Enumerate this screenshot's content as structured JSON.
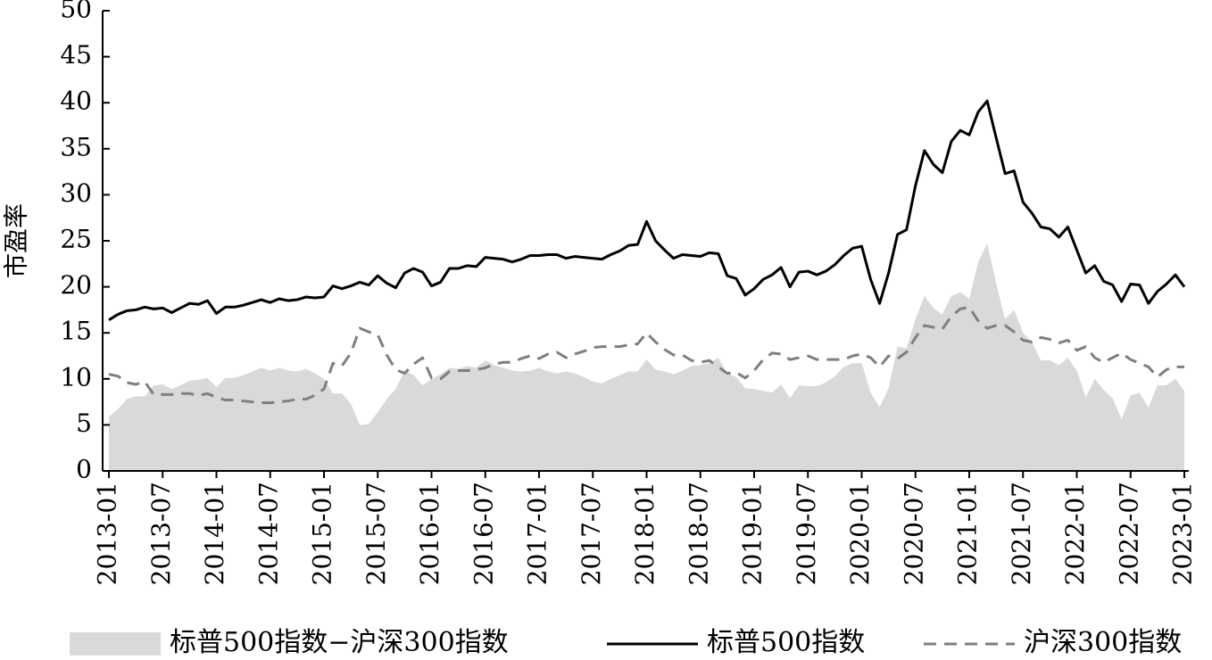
{
  "chart_data": {
    "type": "line",
    "ylabel": "市盈率",
    "x": [
      "2013-01",
      "2013-02",
      "2013-03",
      "2013-04",
      "2013-05",
      "2013-06",
      "2013-07",
      "2013-08",
      "2013-09",
      "2013-10",
      "2013-11",
      "2013-12",
      "2014-01",
      "2014-02",
      "2014-03",
      "2014-04",
      "2014-05",
      "2014-06",
      "2014-07",
      "2014-08",
      "2014-09",
      "2014-10",
      "2014-11",
      "2014-12",
      "2015-01",
      "2015-02",
      "2015-03",
      "2015-04",
      "2015-05",
      "2015-06",
      "2015-07",
      "2015-08",
      "2015-09",
      "2015-10",
      "2015-11",
      "2015-12",
      "2016-01",
      "2016-02",
      "2016-03",
      "2016-04",
      "2016-05",
      "2016-06",
      "2016-07",
      "2016-08",
      "2016-09",
      "2016-10",
      "2016-11",
      "2016-12",
      "2017-01",
      "2017-02",
      "2017-03",
      "2017-04",
      "2017-05",
      "2017-06",
      "2017-07",
      "2017-08",
      "2017-09",
      "2017-10",
      "2017-11",
      "2017-12",
      "2018-01",
      "2018-02",
      "2018-03",
      "2018-04",
      "2018-05",
      "2018-06",
      "2018-07",
      "2018-08",
      "2018-09",
      "2018-10",
      "2018-11",
      "2018-12",
      "2019-01",
      "2019-02",
      "2019-03",
      "2019-04",
      "2019-05",
      "2019-06",
      "2019-07",
      "2019-08",
      "2019-09",
      "2019-10",
      "2019-11",
      "2019-12",
      "2020-01",
      "2020-02",
      "2020-03",
      "2020-04",
      "2020-05",
      "2020-06",
      "2020-07",
      "2020-08",
      "2020-09",
      "2020-10",
      "2020-11",
      "2020-12",
      "2021-01",
      "2021-02",
      "2021-03",
      "2021-04",
      "2021-05",
      "2021-06",
      "2021-07",
      "2021-08",
      "2021-09",
      "2021-10",
      "2021-11",
      "2021-12",
      "2022-01",
      "2022-02",
      "2022-03",
      "2022-04",
      "2022-05",
      "2022-06",
      "2022-07",
      "2022-08",
      "2022-09",
      "2022-10",
      "2022-11",
      "2022-12",
      "2023-01"
    ],
    "xticks": [
      "2013-01",
      "2013-07",
      "2014-01",
      "2014-07",
      "2015-01",
      "2015-07",
      "2016-01",
      "2016-07",
      "2017-01",
      "2017-07",
      "2018-01",
      "2018-07",
      "2019-01",
      "2019-07",
      "2020-01",
      "2020-07",
      "2021-01",
      "2021-07",
      "2022-01",
      "2022-07",
      "2023-01"
    ],
    "ylim": [
      0,
      50
    ],
    "yticks": [
      0,
      5,
      10,
      15,
      20,
      25,
      30,
      35,
      40,
      45,
      50
    ],
    "series": [
      {
        "name": "标普500指数−沪深300指数",
        "style": "area",
        "color": "#d9d9d9",
        "values": [
          5.9,
          6.7,
          7.8,
          8.1,
          8.1,
          9.3,
          9.4,
          8.9,
          9.3,
          9.8,
          9.9,
          10.1,
          9.1,
          10.1,
          10.1,
          10.4,
          10.8,
          11.2,
          10.9,
          11.2,
          10.9,
          10.8,
          11.1,
          10.6,
          10.0,
          8.4,
          8.4,
          7.3,
          5.0,
          5.1,
          6.4,
          7.8,
          8.9,
          10.9,
          10.4,
          9.3,
          10.0,
          10.5,
          11.2,
          11.1,
          11.4,
          11.2,
          12.0,
          11.5,
          11.2,
          10.9,
          10.8,
          10.9,
          11.2,
          10.8,
          10.6,
          10.8,
          10.6,
          10.2,
          9.7,
          9.5,
          10.0,
          10.4,
          10.8,
          10.8,
          12.1,
          11.0,
          10.8,
          10.5,
          10.9,
          11.4,
          11.5,
          11.7,
          12.3,
          10.6,
          10.2,
          9.0,
          8.9,
          8.7,
          8.5,
          9.4,
          7.9,
          9.3,
          9.2,
          9.2,
          9.6,
          10.3,
          11.3,
          11.7,
          11.7,
          8.5,
          6.9,
          9.0,
          13.5,
          13.3,
          16.5,
          19.0,
          17.7,
          17.0,
          19.0,
          19.4,
          18.7,
          22.7,
          24.7,
          20.4,
          16.5,
          17.5,
          15.0,
          14.0,
          12.0,
          12.0,
          11.5,
          12.3,
          10.9,
          8.0,
          10.0,
          8.8,
          7.9,
          5.6,
          8.2,
          8.5,
          6.9,
          9.3,
          9.3,
          10.0,
          8.7
        ]
      },
      {
        "name": "标普500指数",
        "style": "solid",
        "color": "#000000",
        "values": [
          16.4,
          17.0,
          17.4,
          17.5,
          17.8,
          17.6,
          17.7,
          17.2,
          17.7,
          18.2,
          18.1,
          18.5,
          17.1,
          17.8,
          17.8,
          18.0,
          18.3,
          18.6,
          18.3,
          18.7,
          18.5,
          18.6,
          18.9,
          18.8,
          18.9,
          20.1,
          19.8,
          20.1,
          20.5,
          20.2,
          21.2,
          20.4,
          19.9,
          21.5,
          22.0,
          21.6,
          20.1,
          20.5,
          22.0,
          22.0,
          22.3,
          22.2,
          23.2,
          23.1,
          23.0,
          22.7,
          23.0,
          23.4,
          23.4,
          23.5,
          23.5,
          23.1,
          23.3,
          23.2,
          23.1,
          23.0,
          23.5,
          23.9,
          24.5,
          24.6,
          27.1,
          25.0,
          24.0,
          23.1,
          23.5,
          23.4,
          23.3,
          23.7,
          23.6,
          21.2,
          20.9,
          19.1,
          19.8,
          20.8,
          21.3,
          22.1,
          20.0,
          21.6,
          21.7,
          21.3,
          21.7,
          22.4,
          23.4,
          24.2,
          24.4,
          20.8,
          18.2,
          21.5,
          25.7,
          26.2,
          31.0,
          34.8,
          33.3,
          32.4,
          35.8,
          37.0,
          36.5,
          39.0,
          40.2,
          36.2,
          32.3,
          32.6,
          29.2,
          28.0,
          26.5,
          26.3,
          25.4,
          26.5,
          24.0,
          21.5,
          22.3,
          20.6,
          20.2,
          18.4,
          20.3,
          20.2,
          18.2,
          19.5,
          20.3,
          21.3,
          20.0
        ]
      },
      {
        "name": "沪深300指数",
        "style": "dashed",
        "color": "#7f7f7f",
        "values": [
          10.5,
          10.3,
          9.6,
          9.4,
          9.7,
          8.3,
          8.3,
          8.3,
          8.4,
          8.4,
          8.2,
          8.4,
          8.0,
          7.7,
          7.7,
          7.6,
          7.5,
          7.4,
          7.4,
          7.5,
          7.6,
          7.8,
          7.8,
          8.2,
          8.9,
          11.7,
          11.4,
          12.8,
          15.5,
          15.1,
          14.8,
          12.6,
          11.0,
          10.6,
          11.6,
          12.3,
          10.1,
          10.0,
          10.8,
          10.9,
          10.9,
          11.0,
          11.2,
          11.6,
          11.8,
          11.8,
          12.2,
          12.5,
          12.2,
          12.7,
          12.9,
          12.3,
          12.7,
          13.0,
          13.4,
          13.5,
          13.5,
          13.5,
          13.7,
          13.8,
          15.0,
          14.0,
          13.2,
          12.6,
          12.6,
          12.0,
          11.8,
          12.0,
          11.3,
          10.6,
          10.7,
          10.1,
          10.9,
          12.1,
          12.8,
          12.7,
          12.1,
          12.3,
          12.5,
          12.1,
          12.1,
          12.1,
          12.1,
          12.5,
          12.7,
          12.3,
          11.3,
          12.5,
          12.2,
          12.9,
          14.5,
          15.8,
          15.6,
          15.4,
          16.8,
          17.6,
          17.8,
          16.3,
          15.5,
          15.8,
          15.8,
          15.1,
          14.2,
          14.0,
          14.5,
          14.3,
          13.9,
          14.2,
          13.1,
          13.5,
          12.3,
          11.8,
          12.3,
          12.8,
          12.1,
          11.7,
          11.3,
          10.2,
          11.0,
          11.3,
          11.3
        ]
      }
    ],
    "legend": "bottom"
  }
}
